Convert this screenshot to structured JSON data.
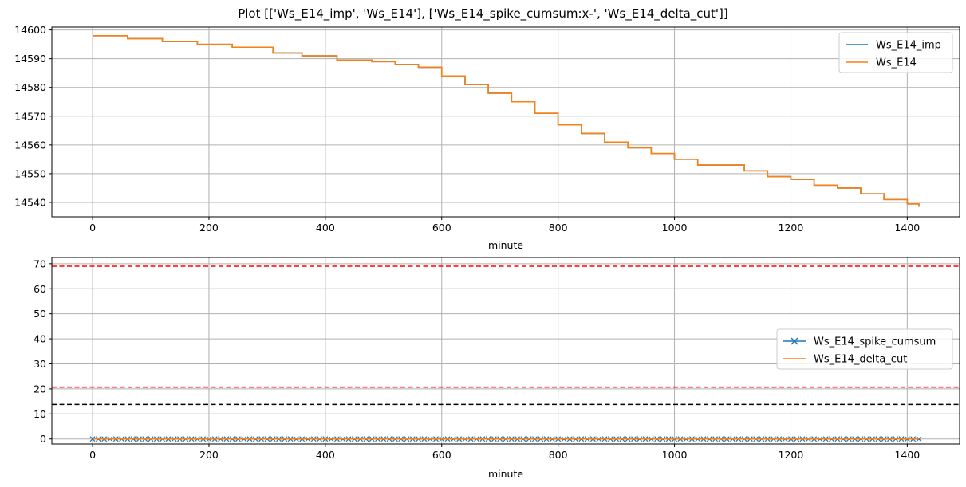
{
  "figure": {
    "title": "Plot [['Ws_E14_imp', 'Ws_E14'], ['Ws_E14_spike_cumsum:x-', 'Ws_E14_delta_cut']]"
  },
  "colors": {
    "blue": "#1f77b4",
    "orange": "#ff7f0e",
    "red_dashed": "#ff0000",
    "black_dashed": "#000000",
    "grid": "#b0b0b0"
  },
  "chart_data": [
    {
      "type": "line",
      "xlabel": "minute",
      "ylabel": "",
      "xlim": [
        -70,
        1490
      ],
      "ylim": [
        14535,
        14601
      ],
      "xticks": [
        0,
        200,
        400,
        600,
        800,
        1000,
        1200,
        1400
      ],
      "yticks": [
        14540,
        14550,
        14560,
        14570,
        14580,
        14590,
        14600
      ],
      "grid": true,
      "legend": "upper-right",
      "series": [
        {
          "name": "Ws_E14_imp",
          "color": "#1f77b4",
          "style": "solid",
          "x": [
            0,
            60,
            120,
            180,
            240,
            310,
            360,
            420,
            480,
            520,
            560,
            600,
            640,
            680,
            720,
            760,
            800,
            840,
            880,
            920,
            960,
            1000,
            1040,
            1080,
            1120,
            1160,
            1200,
            1240,
            1280,
            1320,
            1360,
            1400,
            1420
          ],
          "y": [
            14598,
            14597,
            14596,
            14595,
            14594,
            14592,
            14591,
            14589.5,
            14589,
            14588,
            14587,
            14584,
            14581,
            14578,
            14575,
            14571,
            14567,
            14564,
            14561,
            14559,
            14557,
            14555,
            14553,
            14553,
            14551,
            14549,
            14548,
            14546,
            14545,
            14543,
            14541,
            14539.5,
            14538.5
          ]
        },
        {
          "name": "Ws_E14",
          "color": "#ff7f0e",
          "style": "solid",
          "x": [
            0,
            60,
            120,
            180,
            240,
            310,
            360,
            420,
            480,
            520,
            560,
            600,
            640,
            680,
            720,
            760,
            800,
            840,
            880,
            920,
            960,
            1000,
            1040,
            1080,
            1120,
            1160,
            1200,
            1240,
            1280,
            1320,
            1360,
            1400,
            1420
          ],
          "y": [
            14598,
            14597,
            14596,
            14595,
            14594,
            14592,
            14591,
            14589.5,
            14589,
            14588,
            14587,
            14584,
            14581,
            14578,
            14575,
            14571,
            14567,
            14564,
            14561,
            14559,
            14557,
            14555,
            14553,
            14553,
            14551,
            14549,
            14548,
            14546,
            14545,
            14543,
            14541,
            14539.5,
            14538.5
          ]
        }
      ]
    },
    {
      "type": "line",
      "xlabel": "minute",
      "ylabel": "",
      "xlim": [
        -70,
        1490
      ],
      "ylim": [
        -2,
        72.5
      ],
      "xticks": [
        0,
        200,
        400,
        600,
        800,
        1000,
        1200,
        1400
      ],
      "yticks": [
        0,
        10,
        20,
        30,
        40,
        50,
        60,
        70
      ],
      "grid": true,
      "legend": "center-right",
      "series": [
        {
          "name": "Ws_E14_spike_cumsum",
          "color": "#1f77b4",
          "style": "solid-x-markers",
          "x": [
            0,
            1420
          ],
          "y": [
            0,
            0
          ]
        },
        {
          "name": "Ws_E14_delta_cut",
          "color": "#ff7f0e",
          "style": "solid",
          "x": [
            0,
            25,
            27,
            29,
            70,
            72,
            74,
            215,
            217,
            219,
            365,
            367,
            369,
            935,
            937,
            939,
            1015,
            1017,
            1019,
            1420
          ],
          "y": [
            0,
            0,
            0.7,
            0,
            0,
            0.7,
            0,
            0,
            0.5,
            0,
            0,
            0.7,
            0,
            0,
            0.5,
            0,
            0,
            0.5,
            0,
            0
          ]
        }
      ],
      "hlines": [
        {
          "y": 69,
          "color": "#ff0000",
          "style": "dashed"
        },
        {
          "y": 20.7,
          "color": "#ff0000",
          "style": "dashed"
        },
        {
          "y": 13.8,
          "color": "#000000",
          "style": "dashed"
        }
      ]
    }
  ]
}
